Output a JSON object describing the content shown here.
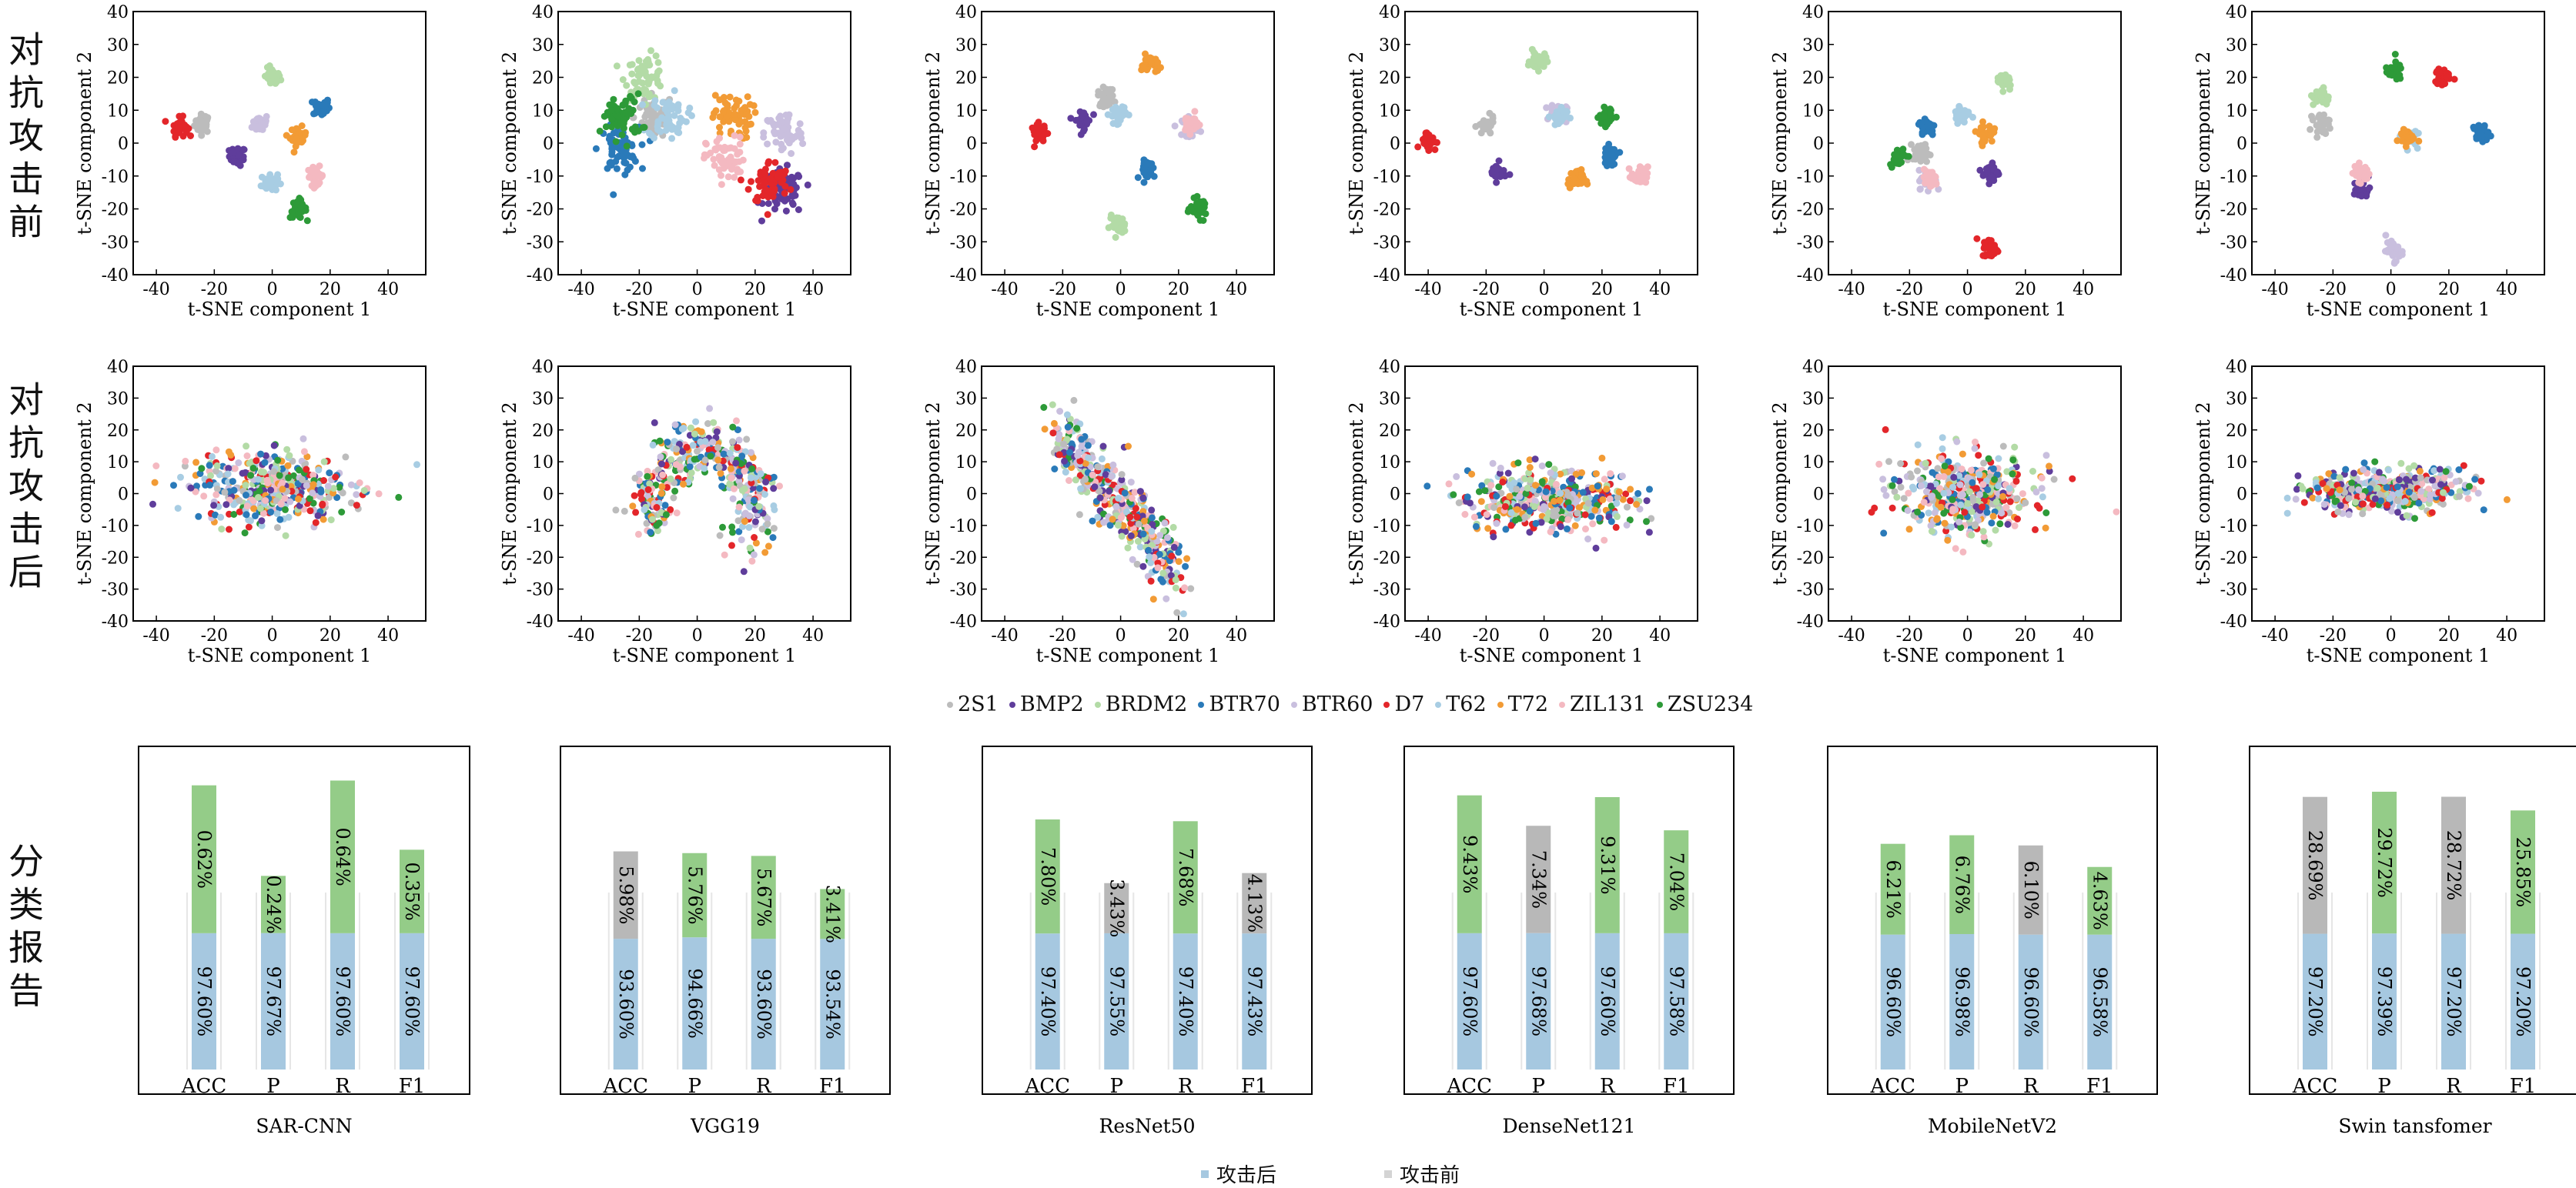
{
  "row_labels": {
    "before": "对抗攻击前",
    "after": "对抗攻击后",
    "report": "分类报告"
  },
  "tsne_axes": {
    "xlabel": "t-SNE component 1",
    "ylabel": "t-SNE component 2",
    "xticks": [
      -40,
      -20,
      0,
      20,
      40
    ],
    "yticks": [
      40,
      30,
      20,
      10,
      0,
      -10,
      -20,
      -30,
      -40
    ]
  },
  "classes": [
    {
      "name": "2S1",
      "color": "#bcbcbc"
    },
    {
      "name": "BMP2",
      "color": "#5f3d9b"
    },
    {
      "name": "BRDM2",
      "color": "#b3dba6"
    },
    {
      "name": "BTR70",
      "color": "#2a7ab9"
    },
    {
      "name": "BTR60",
      "color": "#c9bfde"
    },
    {
      "name": "D7",
      "color": "#e3262a"
    },
    {
      "name": "T62",
      "color": "#a8cde3"
    },
    {
      "name": "T72",
      "color": "#f29b35"
    },
    {
      "name": "ZIL131",
      "color": "#f4b9c1"
    },
    {
      "name": "ZSU234",
      "color": "#2d9a38"
    }
  ],
  "bar_legend": {
    "after": "攻击后",
    "before": "攻击前",
    "after_color": "#a6c8e0",
    "before_color": "#d4d4d4"
  },
  "bar_categories": [
    "ACC",
    "P",
    "R",
    "F1"
  ],
  "colors": {
    "after_bar": "#a6c8e0",
    "drop_green": "#94cc88",
    "drop_gray": "#b8b8b8"
  },
  "chart_data": [
    {
      "type": "bar",
      "title": "SAR-CNN",
      "categories": [
        "ACC",
        "P",
        "R",
        "F1"
      ],
      "series": [
        {
          "name": "攻击后",
          "values": [
            97.6,
            97.67,
            97.6,
            97.6
          ],
          "labels": [
            "97.60%",
            "97.67%",
            "97.60%",
            "97.60%"
          ]
        },
        {
          "name": "攻击前",
          "values": [
            0.62,
            0.24,
            0.64,
            0.35
          ],
          "labels": [
            "0.62%",
            "0.24%",
            "0.64%",
            "0.35%"
          ],
          "drop_color": "green"
        }
      ]
    },
    {
      "type": "bar",
      "title": "VGG19",
      "categories": [
        "ACC",
        "P",
        "R",
        "F1"
      ],
      "series": [
        {
          "name": "攻击后",
          "values": [
            93.6,
            94.66,
            93.6,
            93.54
          ],
          "labels": [
            "93.60%",
            "94.66%",
            "93.60%",
            "93.54%"
          ]
        },
        {
          "name": "攻击前",
          "values": [
            5.98,
            5.76,
            5.67,
            3.41
          ],
          "labels": [
            "5.98%",
            "5.76%",
            "5.67%",
            "3.41%"
          ],
          "drop_color": [
            "gray",
            "green",
            "green",
            "green"
          ]
        }
      ]
    },
    {
      "type": "bar",
      "title": "ResNet50",
      "categories": [
        "ACC",
        "P",
        "R",
        "F1"
      ],
      "series": [
        {
          "name": "攻击后",
          "values": [
            97.4,
            97.55,
            97.4,
            97.43
          ],
          "labels": [
            "97.40%",
            "97.55%",
            "97.40%",
            "97.43%"
          ]
        },
        {
          "name": "攻击前",
          "values": [
            7.8,
            3.43,
            7.68,
            4.13
          ],
          "labels": [
            "7.80%",
            "3.43%",
            "7.68%",
            "4.13%"
          ],
          "drop_color": [
            "green",
            "gray",
            "green",
            "gray"
          ]
        }
      ]
    },
    {
      "type": "bar",
      "title": "DenseNet121",
      "categories": [
        "ACC",
        "P",
        "R",
        "F1"
      ],
      "series": [
        {
          "name": "攻击后",
          "values": [
            97.6,
            97.68,
            97.6,
            97.58
          ],
          "labels": [
            "97.60%",
            "97.68%",
            "97.60%",
            "97.58%"
          ]
        },
        {
          "name": "攻击前",
          "values": [
            9.43,
            7.34,
            9.31,
            7.04
          ],
          "labels": [
            "9.43%",
            "7.34%",
            "9.31%",
            "7.04%"
          ],
          "drop_color": [
            "green",
            "gray",
            "green",
            "green"
          ]
        }
      ]
    },
    {
      "type": "bar",
      "title": "MobileNetV2",
      "categories": [
        "ACC",
        "P",
        "R",
        "F1"
      ],
      "series": [
        {
          "name": "攻击后",
          "values": [
            96.6,
            96.98,
            96.6,
            96.58
          ],
          "labels": [
            "96.60%",
            "96.98%",
            "96.60%",
            "96.58%"
          ]
        },
        {
          "name": "攻击前",
          "values": [
            6.21,
            6.76,
            6.1,
            4.63
          ],
          "labels": [
            "6.21%",
            "6.76%",
            "6.10%",
            "4.63%"
          ],
          "drop_color": [
            "green",
            "green",
            "gray",
            "green"
          ]
        }
      ]
    },
    {
      "type": "bar",
      "title": "Swin tansfomer",
      "categories": [
        "ACC",
        "P",
        "R",
        "F1"
      ],
      "series": [
        {
          "name": "攻击后",
          "values": [
            97.2,
            97.39,
            97.2,
            97.2
          ],
          "labels": [
            "97.20%",
            "97.39%",
            "97.20%",
            "97.20%"
          ]
        },
        {
          "name": "攻击前",
          "values": [
            28.69,
            29.72,
            28.72,
            25.85
          ],
          "labels": [
            "28.69%",
            "29.72%",
            "28.72%",
            "25.85%"
          ],
          "drop_color": [
            "gray",
            "green",
            "gray",
            "green"
          ]
        }
      ]
    }
  ]
}
